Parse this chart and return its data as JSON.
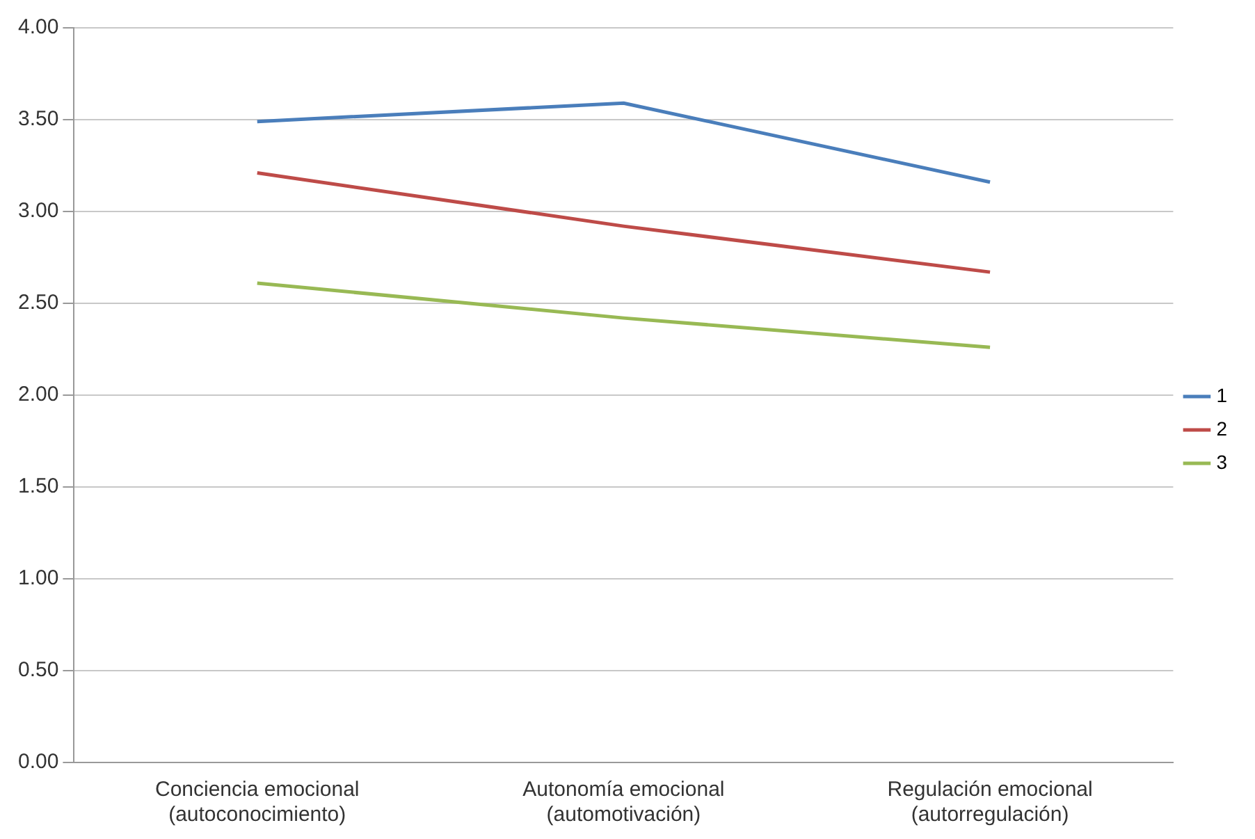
{
  "chart_data": {
    "type": "line",
    "categories": [
      "Conciencia emocional\n(autoconocimiento)",
      "Autonomía emocional\n(automotivación)",
      "Regulación emocional\n(autorregulación)"
    ],
    "series": [
      {
        "name": "1",
        "color": "#4a7ebb",
        "values": [
          3.49,
          3.59,
          3.16
        ]
      },
      {
        "name": "2",
        "color": "#be4b48",
        "values": [
          3.21,
          2.92,
          2.67
        ]
      },
      {
        "name": "3",
        "color": "#98b954",
        "values": [
          2.61,
          2.42,
          2.26
        ]
      }
    ],
    "ylim": [
      0,
      4
    ],
    "yticks": [
      {
        "value": 0,
        "label": "0.00"
      },
      {
        "value": 0.5,
        "label": "0.50"
      },
      {
        "value": 1,
        "label": "1.00"
      },
      {
        "value": 1.5,
        "label": "1.50"
      },
      {
        "value": 2,
        "label": "2.00"
      },
      {
        "value": 2.5,
        "label": "2.50"
      },
      {
        "value": 3,
        "label": "3.00"
      },
      {
        "value": 3.5,
        "label": "3.50"
      },
      {
        "value": 4,
        "label": "4.00"
      }
    ],
    "grid": "y",
    "legend": "right",
    "marker": "none",
    "line_style": "solid"
  }
}
